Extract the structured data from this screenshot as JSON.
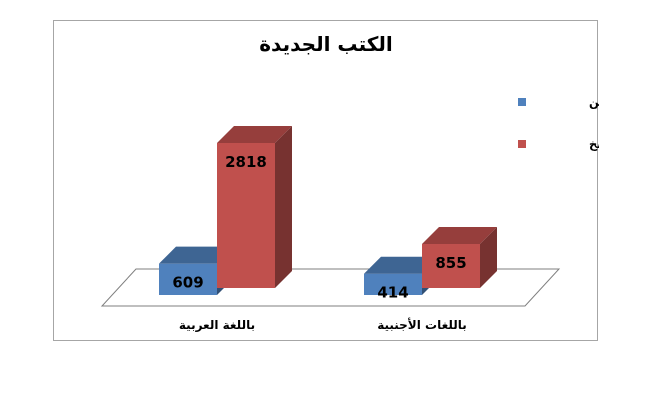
{
  "chart_data": {
    "type": "bar",
    "title": "الكتب الجديدة",
    "categories": [
      "باللغة العربية",
      "باللغات الأجنبية"
    ],
    "series": [
      {
        "name": "عدد العناوين",
        "color": "#4f81bd",
        "values": [
          609,
          414
        ]
      },
      {
        "name": "عدد النسخ",
        "color": "#c0504d",
        "values": [
          2818,
          855
        ]
      }
    ],
    "ylim": [
      0,
      3000
    ],
    "grid": false,
    "legend": "right",
    "three_d": true
  }
}
